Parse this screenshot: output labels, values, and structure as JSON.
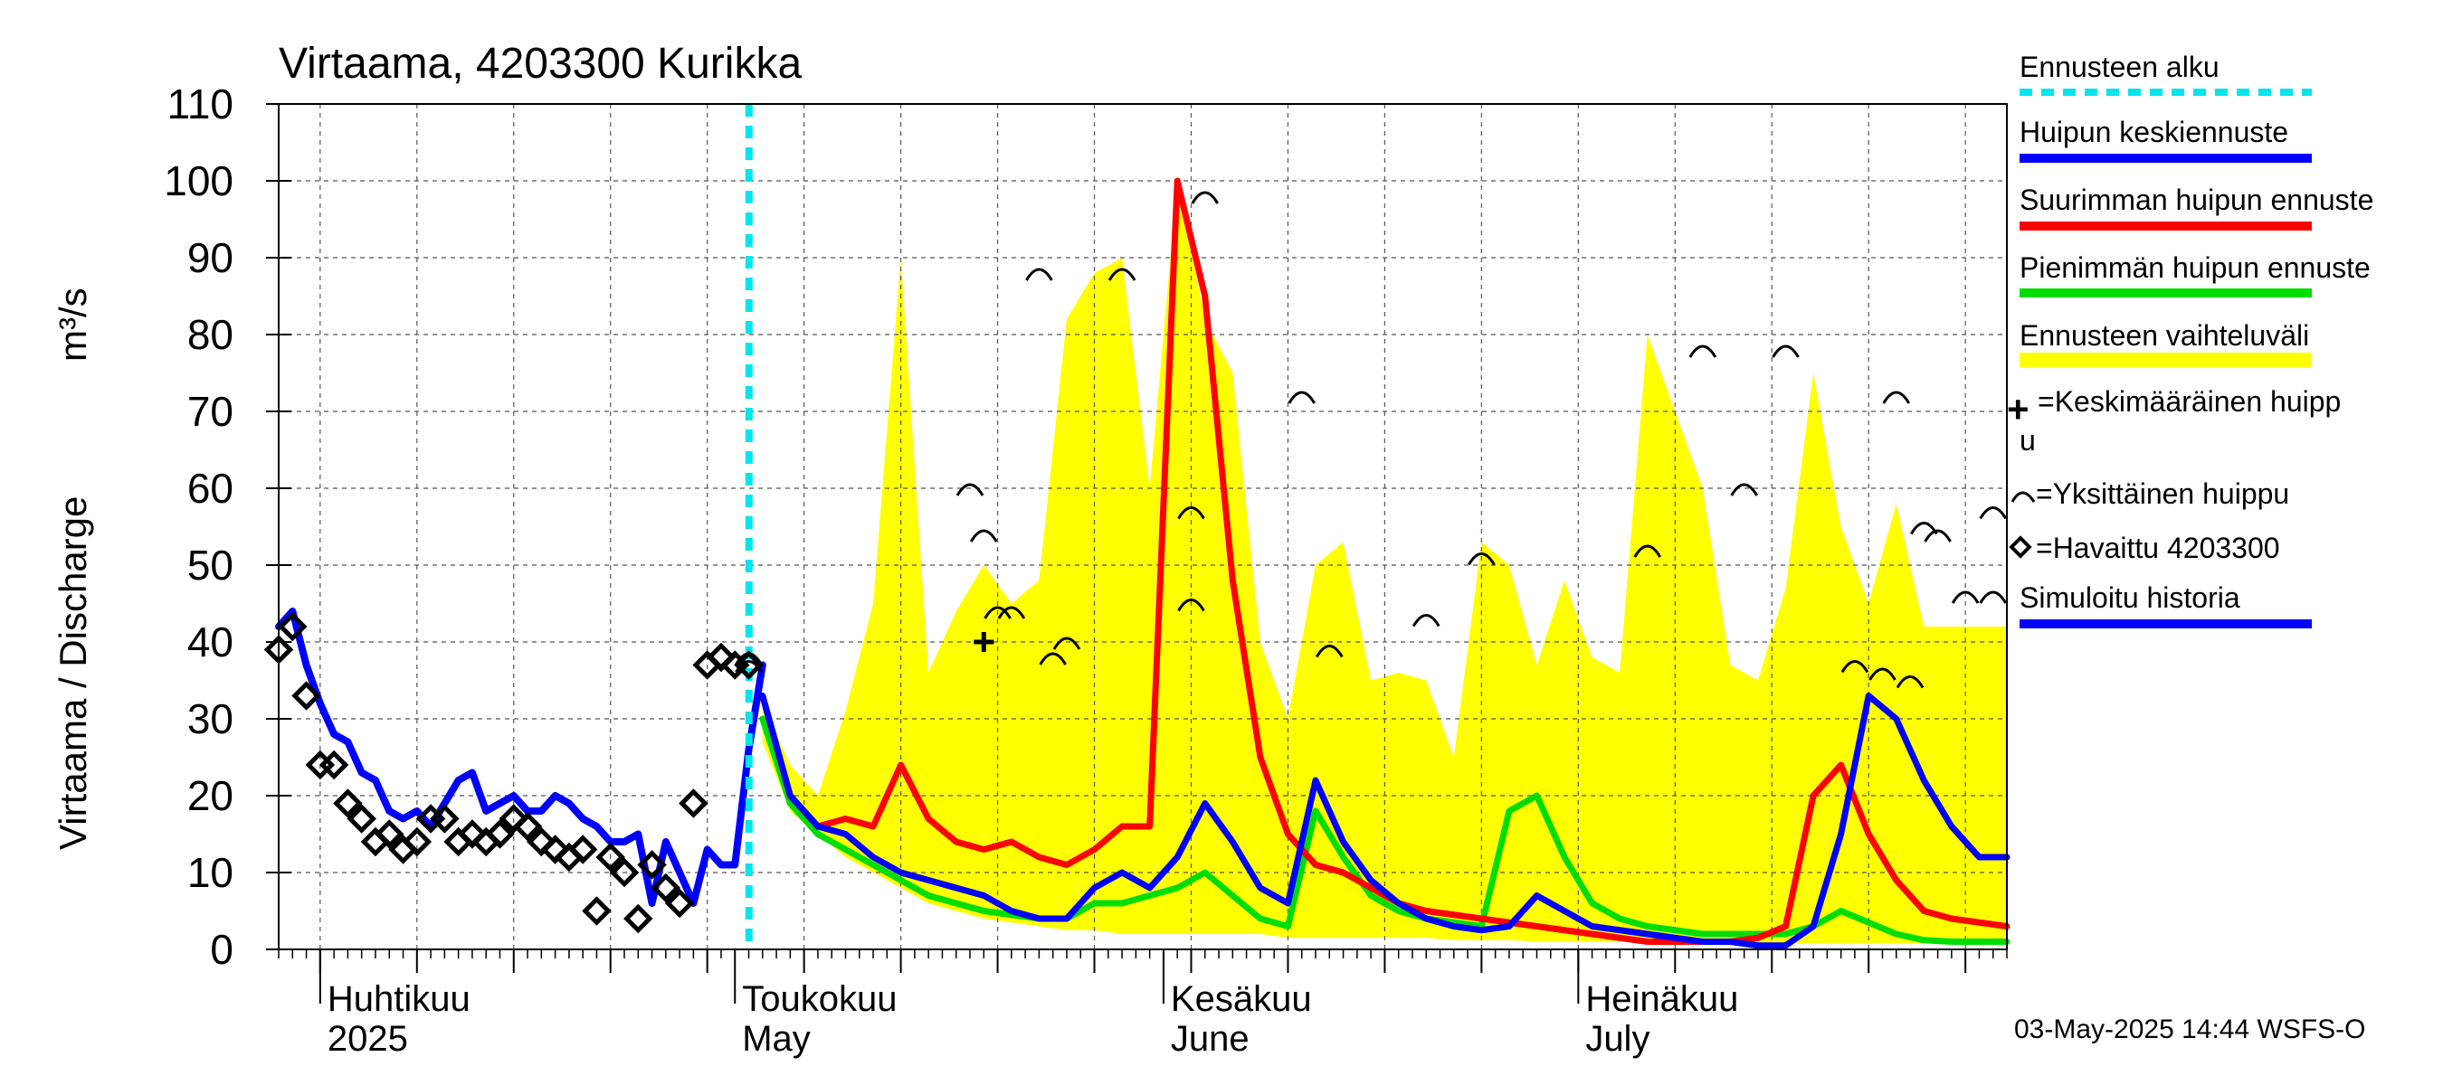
{
  "chart_data": {
    "type": "line",
    "title": "Virtaama, 4203300 Kurikka",
    "ylabel": "Virtaama / Discharge",
    "yunit": "m³/s",
    "ylim": [
      0,
      110
    ],
    "yticks": [
      0,
      10,
      20,
      30,
      40,
      50,
      60,
      70,
      80,
      90,
      100,
      110
    ],
    "xlim": [
      "2025-03-29",
      "2025-08-01"
    ],
    "month_labels": [
      {
        "date": "2025-04-01",
        "fi": "Huhtikuu",
        "en": "2025"
      },
      {
        "date": "2025-05-01",
        "fi": "Toukokuu",
        "en": "May"
      },
      {
        "date": "2025-06-01",
        "fi": "Kesäkuu",
        "en": "June"
      },
      {
        "date": "2025-07-01",
        "fi": "Heinäkuu",
        "en": "July"
      }
    ],
    "forecast_start": "2025-05-03",
    "footer": "03-May-2025 14:44 WSFS-O",
    "colors": {
      "forecast_start": "#00e5ee",
      "mean_peak": "#0000ff",
      "max_peak": "#ff0000",
      "min_peak": "#00dd00",
      "range": "#ffff00",
      "history": "#0000ff",
      "observed": "#000000"
    },
    "legend": {
      "forecast_start": "Ennusteen alku",
      "mean_peak": "Huipun keskiennuste",
      "max_peak": "Suurimman huipun ennuste",
      "min_peak": "Pienimmän huipun ennuste",
      "range": "Ennusteen vaihteluväli",
      "mean_marker": "=Keskimääräinen huipp",
      "mean_marker_wrap": "u",
      "single_peak": "=Yksittäinen huippu",
      "observed": "=Havaittu 4203300",
      "history": "Simuloitu historia"
    },
    "history_series": {
      "x": [
        "2025-03-29",
        "2025-03-30",
        "2025-03-31",
        "2025-04-01",
        "2025-04-02",
        "2025-04-03",
        "2025-04-04",
        "2025-04-05",
        "2025-04-06",
        "2025-04-07",
        "2025-04-08",
        "2025-04-09",
        "2025-04-10",
        "2025-04-11",
        "2025-04-12",
        "2025-04-13",
        "2025-04-14",
        "2025-04-15",
        "2025-04-16",
        "2025-04-17",
        "2025-04-18",
        "2025-04-19",
        "2025-04-20",
        "2025-04-21",
        "2025-04-22",
        "2025-04-23",
        "2025-04-24",
        "2025-04-25",
        "2025-04-26",
        "2025-04-27",
        "2025-04-28",
        "2025-04-29",
        "2025-04-30",
        "2025-05-01",
        "2025-05-02",
        "2025-05-03"
      ],
      "y": [
        42,
        44,
        37,
        32,
        28,
        27,
        23,
        22,
        18,
        17,
        18,
        16,
        19,
        22,
        23,
        18,
        19,
        20,
        18,
        18,
        20,
        19,
        17,
        16,
        14,
        14,
        15,
        6,
        14,
        10,
        6,
        13,
        11,
        11,
        26,
        37
      ]
    },
    "observed_points": {
      "x": [
        "2025-03-29",
        "2025-03-30",
        "2025-03-31",
        "2025-04-01",
        "2025-04-02",
        "2025-04-03",
        "2025-04-04",
        "2025-04-05",
        "2025-04-06",
        "2025-04-07",
        "2025-04-08",
        "2025-04-09",
        "2025-04-10",
        "2025-04-11",
        "2025-04-12",
        "2025-04-13",
        "2025-04-14",
        "2025-04-15",
        "2025-04-16",
        "2025-04-17",
        "2025-04-18",
        "2025-04-19",
        "2025-04-20",
        "2025-04-21",
        "2025-04-22",
        "2025-04-23",
        "2025-04-24",
        "2025-04-25",
        "2025-04-26",
        "2025-04-27",
        "2025-04-28",
        "2025-04-29",
        "2025-04-30",
        "2025-05-01",
        "2025-05-02"
      ],
      "y": [
        39,
        42,
        33,
        24,
        24,
        19,
        17,
        14,
        15,
        13,
        14,
        17,
        17,
        14,
        15,
        14,
        15,
        17,
        16,
        14,
        13,
        12,
        13,
        5,
        12,
        10,
        4,
        11,
        8,
        6,
        19,
        37,
        38,
        37,
        37
      ]
    },
    "forecast_x": [
      "2025-05-03",
      "2025-05-05",
      "2025-05-07",
      "2025-05-09",
      "2025-05-11",
      "2025-05-13",
      "2025-05-15",
      "2025-05-17",
      "2025-05-19",
      "2025-05-21",
      "2025-05-23",
      "2025-05-25",
      "2025-05-27",
      "2025-05-29",
      "2025-05-31",
      "2025-06-02",
      "2025-06-04",
      "2025-06-06",
      "2025-06-08",
      "2025-06-10",
      "2025-06-12",
      "2025-06-14",
      "2025-06-16",
      "2025-06-18",
      "2025-06-20",
      "2025-06-22",
      "2025-06-24",
      "2025-06-26",
      "2025-06-28",
      "2025-06-30",
      "2025-07-02",
      "2025-07-04",
      "2025-07-06",
      "2025-07-08",
      "2025-07-10",
      "2025-07-12",
      "2025-07-14",
      "2025-07-16",
      "2025-07-18",
      "2025-07-20",
      "2025-07-22",
      "2025-07-24",
      "2025-07-26",
      "2025-07-28",
      "2025-07-30",
      "2025-08-01"
    ],
    "series": [
      {
        "name": "Ennusteen vaihteluväli (ylä)",
        "key": "range_upper",
        "y": [
          32,
          24,
          20,
          31,
          45,
          90,
          36,
          44,
          50,
          45,
          48,
          82,
          88,
          90,
          60,
          100,
          82,
          75,
          40,
          30,
          50,
          53,
          35,
          36,
          35,
          25,
          53,
          50,
          37,
          48,
          38,
          36,
          80,
          70,
          60,
          37,
          35,
          47,
          75,
          55,
          45,
          58,
          42,
          42,
          42,
          42
        ]
      },
      {
        "name": "Ennusteen vaihteluväli (ala)",
        "key": "range_lower",
        "y": [
          27,
          18,
          15,
          12,
          10,
          8,
          6,
          5,
          4,
          3.5,
          3,
          2.5,
          2.5,
          2,
          2,
          2,
          2,
          2,
          2,
          1.5,
          1.5,
          1.5,
          1.5,
          1.5,
          1.5,
          1.2,
          1.2,
          1.2,
          1,
          1,
          1,
          1,
          1,
          1,
          1,
          0.8,
          0.8,
          0.8,
          0.8,
          0.8,
          0.8,
          0.8,
          0.8,
          0.8,
          0.8,
          0.8
        ]
      },
      {
        "name": "Huipun keskiennuste",
        "key": "mean_peak",
        "y": [
          33,
          20,
          16,
          15,
          12,
          10,
          9,
          8,
          7,
          5,
          4,
          4,
          8,
          10,
          8,
          12,
          19,
          14,
          8,
          6,
          22,
          14,
          9,
          6,
          4,
          3,
          2.5,
          3,
          7,
          5,
          3,
          2.5,
          2,
          1.5,
          1,
          1,
          0.5,
          0.5,
          3,
          15,
          33,
          30,
          22,
          16,
          12,
          12
        ]
      },
      {
        "name": "Suurimman huipun ennuste",
        "key": "max_peak",
        "y": [
          33,
          20,
          16,
          17,
          16,
          24,
          17,
          14,
          13,
          14,
          12,
          11,
          13,
          16,
          16,
          100,
          85,
          48,
          25,
          15,
          11,
          10,
          8,
          6,
          5,
          4.5,
          4,
          3.5,
          3,
          2.5,
          2,
          1.5,
          1,
          1,
          1,
          1,
          1.5,
          3,
          20,
          24,
          15,
          9,
          5,
          4,
          3.5,
          3
        ]
      },
      {
        "name": "Pienimmän huipun ennuste",
        "key": "min_peak",
        "y": [
          30,
          19,
          15,
          13,
          11,
          9,
          7,
          6,
          5,
          4.5,
          4,
          4,
          6,
          6,
          7,
          8,
          10,
          7,
          4,
          3,
          18,
          12,
          7,
          5,
          4,
          3.5,
          3,
          18,
          20,
          12,
          6,
          4,
          3,
          2.5,
          2,
          2,
          2,
          2,
          3,
          5,
          3.5,
          2,
          1.2,
          1,
          1,
          1
        ]
      }
    ],
    "single_peaks": {
      "x": [
        "2025-05-23",
        "2025-05-29",
        "2025-06-04",
        "2025-06-11",
        "2025-06-20",
        "2025-06-24",
        "2025-07-10",
        "2025-07-06",
        "2025-07-16",
        "2025-07-13",
        "2025-07-24",
        "2025-07-26",
        "2025-07-27",
        "2025-07-31",
        "2025-07-21",
        "2025-07-23",
        "2025-07-25",
        "2025-07-29",
        "2025-06-03",
        "2025-06-03",
        "2025-05-20",
        "2025-05-21",
        "2025-05-25",
        "2025-05-24",
        "2025-05-18",
        "2025-05-19",
        "2025-05-02",
        "2025-05-02",
        "2025-07-31",
        "2025-06-13"
      ],
      "y": [
        88,
        88,
        98,
        72,
        43,
        51,
        78,
        52,
        78,
        60,
        72,
        55,
        54,
        57,
        37,
        36,
        35,
        46,
        57,
        45,
        44,
        44,
        40,
        38,
        60,
        54,
        38,
        37,
        46,
        39
      ]
    },
    "mean_peak_marker": {
      "x": "2025-05-19",
      "y": 40
    }
  }
}
